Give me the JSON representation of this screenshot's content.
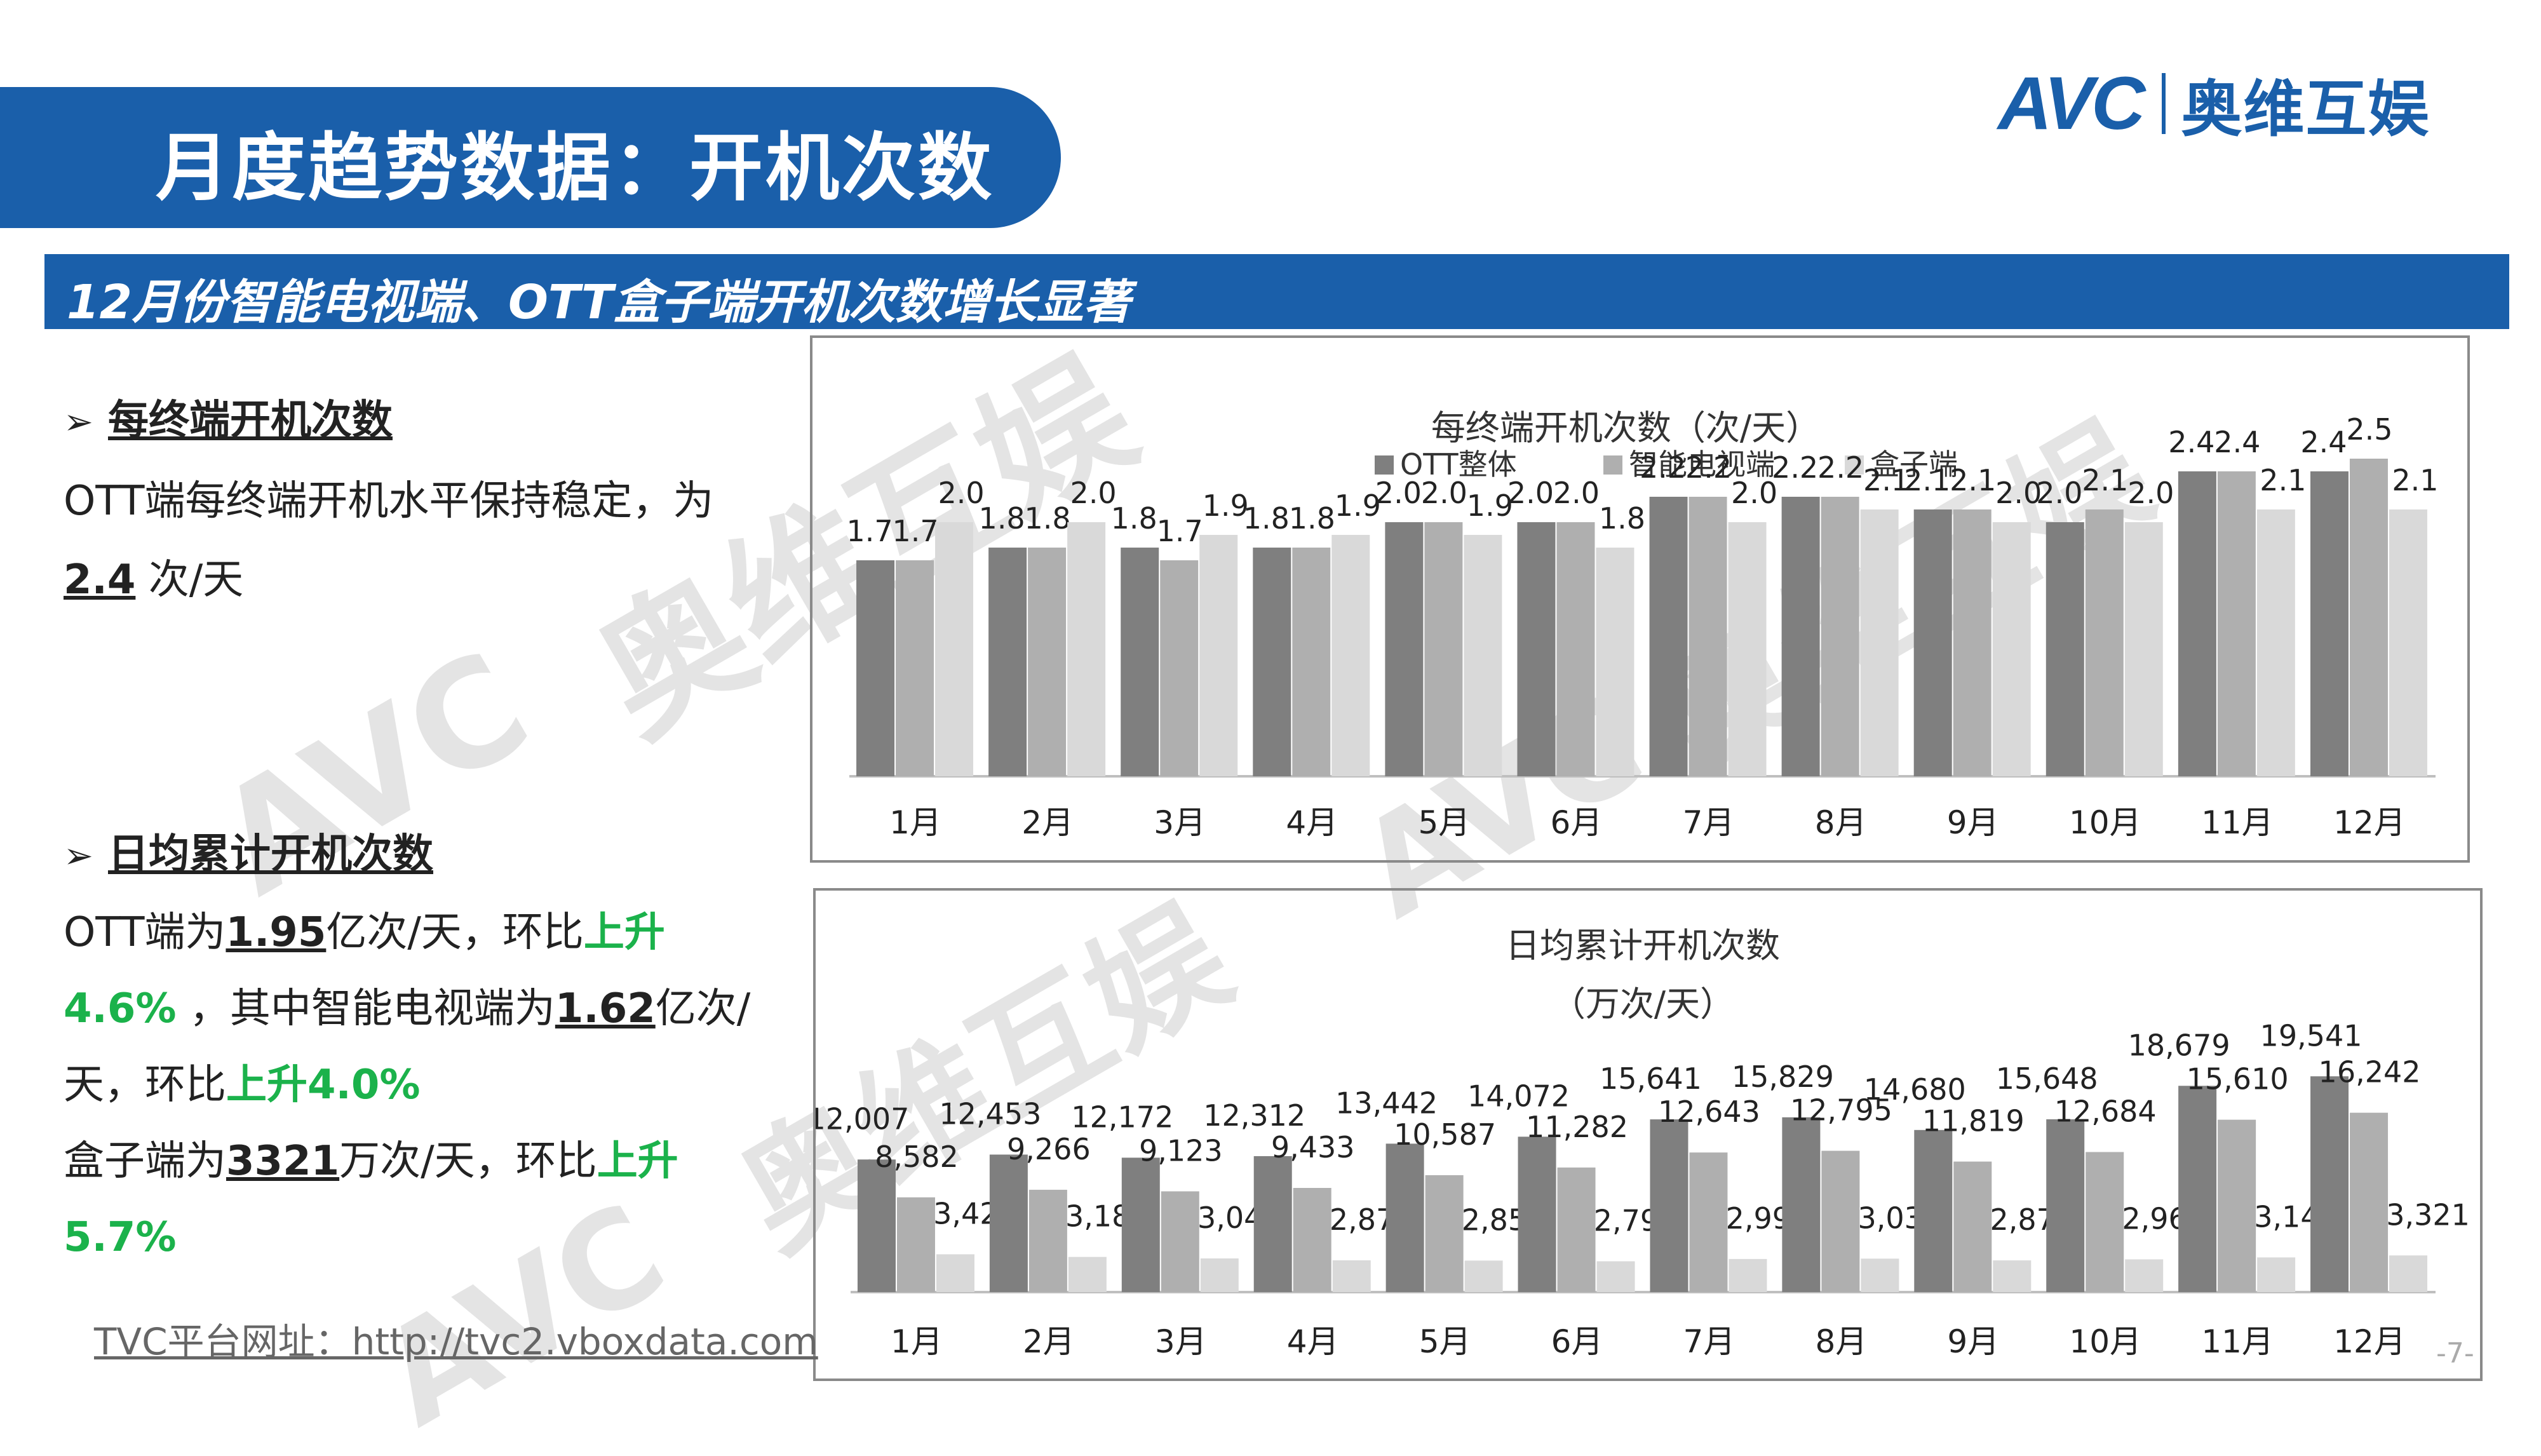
{
  "header": {
    "title": "月度趋势数据：开机次数",
    "subtitle": "12月份智能电视端、OTT盒子端开机次数增长显著",
    "logo_text": "AVC",
    "logo_cn": "奥维互娱"
  },
  "watermark": {
    "text_latin": "AVC",
    "text_cn": "奥维互娱"
  },
  "left": {
    "section1": {
      "heading": "每终端开机次数",
      "line1": "OTT端每终端开机水平保持稳定，为",
      "value": "2.4",
      "unit": " 次/天"
    },
    "section2": {
      "heading": "日均累计开机次数",
      "l1_a": "OTT端为",
      "l1_v": "1.95",
      "l1_b": "亿次/天，环比",
      "l1_g": "上升",
      "l2_g": "4.6%",
      "l2_a": " ，其中智能电视端为",
      "l2_v": "1.62",
      "l2_b": "亿次/",
      "l3_a": "天，环比",
      "l3_g": "上升4.0%",
      "l4_a": "盒子端为",
      "l4_v": "3321",
      "l4_b": "万次/天，环比",
      "l4_g": "上升",
      "l5_g": "5.7%"
    }
  },
  "footer": {
    "url": "TVC平台网址：http://tvc2.vboxdata.com",
    "page": "-7-"
  },
  "colors": {
    "brand": "#1a5faa",
    "ott": "#7f7f7f",
    "tv": "#afafaf",
    "box": "#d9d9d9",
    "green": "#1bb24b"
  },
  "chart_data": [
    {
      "type": "bar",
      "title": "每终端开机次数（次/天）",
      "categories": [
        "1月",
        "2月",
        "3月",
        "4月",
        "5月",
        "6月",
        "7月",
        "8月",
        "9月",
        "10月",
        "11月",
        "12月"
      ],
      "series": [
        {
          "name": "OTT整体",
          "values": [
            1.7,
            1.8,
            1.8,
            1.8,
            2.0,
            2.0,
            2.2,
            2.2,
            2.1,
            2.0,
            2.4,
            2.4
          ]
        },
        {
          "name": "智能电视端",
          "values": [
            1.7,
            1.8,
            1.7,
            1.8,
            2.0,
            2.0,
            2.2,
            2.2,
            2.1,
            2.1,
            2.4,
            2.5
          ]
        },
        {
          "name": "盒子端",
          "values": [
            2.0,
            2.0,
            1.9,
            1.9,
            1.9,
            1.8,
            2.0,
            2.1,
            2.0,
            2.0,
            2.1,
            2.1
          ]
        }
      ],
      "labels": [
        [
          "1.7",
          "1.7",
          "2.0"
        ],
        [
          "1.8",
          "1.8",
          "2.0"
        ],
        [
          "1.8",
          "1.7",
          "1.9"
        ],
        [
          "1.8",
          "1.8",
          "1.9"
        ],
        [
          "2.0",
          "2.0",
          "1.9"
        ],
        [
          "2.0",
          "2.0",
          "1.8"
        ],
        [
          "2.2",
          "2.2",
          "2.0"
        ],
        [
          "2.2",
          "2.2",
          "2.1"
        ],
        [
          "2.1",
          "2.1",
          "2.0"
        ],
        [
          "2.0",
          "2.1",
          "2.0"
        ],
        [
          "2.4",
          "2.4",
          "2.1"
        ],
        [
          "2.4",
          "2.5",
          "2.1"
        ]
      ],
      "ylim": [
        0,
        2.7
      ],
      "legend": "top",
      "grid": false
    },
    {
      "type": "bar",
      "title": "日均累计开机次数",
      "subtitle": "（万次/天）",
      "categories": [
        "1月",
        "2月",
        "3月",
        "4月",
        "5月",
        "6月",
        "7月",
        "8月",
        "9月",
        "10月",
        "11月",
        "12月"
      ],
      "series": [
        {
          "values": [
            12007,
            12453,
            12172,
            12312,
            13442,
            14072,
            15641,
            15829,
            14680,
            15648,
            18679,
            19541
          ]
        },
        {
          "values": [
            8582,
            9266,
            9123,
            9433,
            10587,
            11282,
            12643,
            12795,
            11819,
            12684,
            15610,
            16242
          ]
        },
        {
          "values": [
            3425,
            3187,
            3049,
            2879,
            2855,
            2790,
            2998,
            3033,
            2873,
            2967,
            3142,
            3321
          ]
        }
      ],
      "labels": [
        [
          "12,007",
          "8,582",
          "3,425"
        ],
        [
          "12,453",
          "9,266",
          "3,187"
        ],
        [
          "12,172",
          "9,123",
          "3,049"
        ],
        [
          "12,312",
          "9,433",
          "2,879"
        ],
        [
          "13,442",
          "10,587",
          "2,855"
        ],
        [
          "14,072",
          "11,282",
          "2,790"
        ],
        [
          "15,641",
          "12,643",
          "2,998"
        ],
        [
          "15,829",
          "12,795",
          "3,033"
        ],
        [
          "14,680",
          "11,819",
          "2,873"
        ],
        [
          "15,648",
          "12,684",
          "2,967"
        ],
        [
          "18,679",
          "15,610",
          "3,142"
        ],
        [
          "19,541",
          "16,242",
          "3,321"
        ]
      ],
      "ylim": [
        0,
        26000
      ],
      "grid": false
    }
  ]
}
